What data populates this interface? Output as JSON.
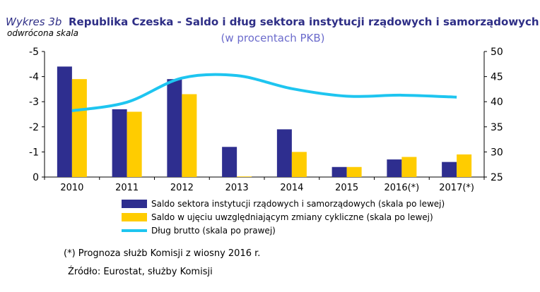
{
  "header": {
    "title_prefix": "Wykres 3b",
    "title": "Republika Czeska - Saldo i dług sektora instytucji rządowych i samorządowych",
    "subtitle": "(w procentach PKB)",
    "left_axis_note": "odwrócona skala"
  },
  "footnotes": {
    "forecast": "(*)  Prognoza służb Komisji z wiosny 2016 r.",
    "source": "Źródło: Eurostat, służby Komisji"
  },
  "colors": {
    "series1": "#2e2e8f",
    "series2": "#ffcc00",
    "series3": "#1ec5f0"
  },
  "chart_data": {
    "type": "bar",
    "categories": [
      "2010",
      "2011",
      "2012",
      "2013",
      "2014",
      "2015",
      "2016(*)",
      "2017(*)"
    ],
    "series": [
      {
        "name": "Saldo sektora instytucji rządowych i samorządowych (skala po lewej)",
        "type": "bar",
        "axis": "left",
        "values": [
          -4.4,
          -2.7,
          -3.9,
          -1.2,
          -1.9,
          -0.4,
          -0.7,
          -0.6
        ]
      },
      {
        "name": "Saldo w ujęciu uwzględniającym zmiany cykliczne (skala po lewej)",
        "type": "bar",
        "axis": "left",
        "values": [
          -3.9,
          -2.6,
          -3.3,
          0.0,
          -1.0,
          -0.4,
          -0.8,
          -0.9
        ]
      },
      {
        "name": "Dług brutto (skala po prawej)",
        "type": "line",
        "axis": "right",
        "values": [
          38.2,
          39.9,
          44.7,
          45.2,
          42.6,
          41.1,
          41.3,
          40.9
        ]
      }
    ],
    "y_left": {
      "lim": [
        0,
        -5
      ],
      "ticks": [
        0,
        -1,
        -2,
        -3,
        -4,
        -5
      ],
      "inverted": true
    },
    "y_right": {
      "lim": [
        25,
        50
      ],
      "ticks": [
        25,
        30,
        35,
        40,
        45,
        50
      ]
    },
    "legend": "bottom",
    "grid": false
  }
}
